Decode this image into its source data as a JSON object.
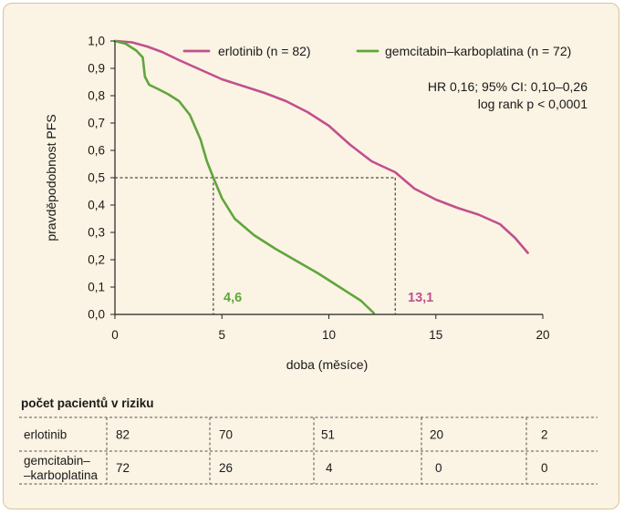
{
  "chart_data": {
    "type": "line",
    "xlabel": "doba (měsíce)",
    "ylabel": "pravděpodobnost PFS",
    "xlim": [
      0,
      20
    ],
    "ylim": [
      0,
      1
    ],
    "x_ticks": [
      "0",
      "5",
      "10",
      "15",
      "20"
    ],
    "y_ticks": [
      "0,0",
      "0,1",
      "0,2",
      "0,3",
      "0,4",
      "0,5",
      "0,6",
      "0,7",
      "0,8",
      "0,9",
      "1,0"
    ],
    "legend_position": "top-right",
    "series": [
      {
        "name": "erlotinib (n = 82)",
        "color": "#c0508f",
        "points": [
          [
            0,
            1.0
          ],
          [
            0.3,
            0.998
          ],
          [
            0.8,
            0.995
          ],
          [
            1.5,
            0.98
          ],
          [
            2.2,
            0.96
          ],
          [
            3,
            0.93
          ],
          [
            4,
            0.895
          ],
          [
            5,
            0.86
          ],
          [
            6,
            0.835
          ],
          [
            7,
            0.81
          ],
          [
            8,
            0.78
          ],
          [
            9,
            0.74
          ],
          [
            10,
            0.69
          ],
          [
            11,
            0.62
          ],
          [
            12,
            0.56
          ],
          [
            13.1,
            0.52
          ],
          [
            14,
            0.46
          ],
          [
            15,
            0.42
          ],
          [
            16,
            0.39
          ],
          [
            17,
            0.365
          ],
          [
            18,
            0.33
          ],
          [
            18.7,
            0.28
          ],
          [
            19.3,
            0.225
          ]
        ]
      },
      {
        "name": "gemcitabin–karboplatina (n = 72)",
        "color": "#5fa63b",
        "points": [
          [
            0,
            1.0
          ],
          [
            0.5,
            0.99
          ],
          [
            1,
            0.965
          ],
          [
            1.3,
            0.94
          ],
          [
            1.4,
            0.87
          ],
          [
            1.6,
            0.84
          ],
          [
            2,
            0.825
          ],
          [
            2.5,
            0.805
          ],
          [
            3,
            0.78
          ],
          [
            3.5,
            0.73
          ],
          [
            4,
            0.64
          ],
          [
            4.3,
            0.56
          ],
          [
            4.6,
            0.5
          ],
          [
            5,
            0.425
          ],
          [
            5.6,
            0.35
          ],
          [
            6.5,
            0.29
          ],
          [
            7.5,
            0.24
          ],
          [
            8.5,
            0.195
          ],
          [
            9.5,
            0.15
          ],
          [
            10.5,
            0.1
          ],
          [
            11.5,
            0.05
          ],
          [
            12.1,
            0.005
          ]
        ]
      }
    ],
    "medians": [
      {
        "label": "4,6",
        "value": 4.6,
        "color": "#5fa63b"
      },
      {
        "label": "13,1",
        "value": 13.1,
        "color": "#c0508f"
      }
    ],
    "reference_y": 0.5,
    "annotations": [
      "HR 0,16; 95% CI: 0,10–0,26",
      "log rank p < 0,0001"
    ]
  },
  "risk_table": {
    "title": "počet pacientů v riziku",
    "rows": [
      {
        "label_lines": [
          "erlotinib"
        ],
        "values": [
          "82",
          "70",
          "51",
          "20",
          "2"
        ]
      },
      {
        "label_lines": [
          "gemcitabin–",
          "–karboplatina"
        ],
        "values": [
          "72",
          "26",
          "4",
          "0",
          "0"
        ]
      }
    ]
  }
}
